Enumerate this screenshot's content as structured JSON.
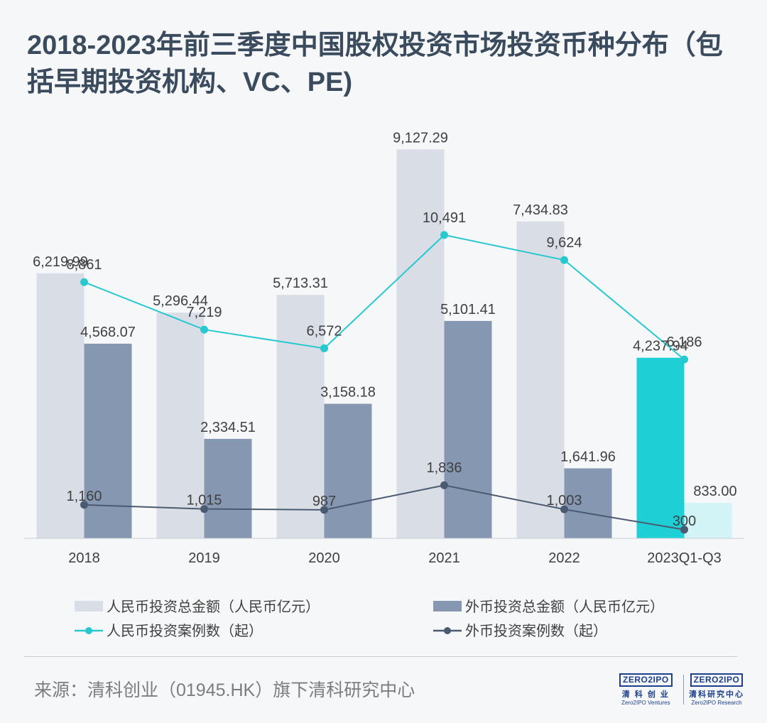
{
  "title": "2018-2023年前三季度中国股权投资市场投资币种分布（包括早期投资机构、VC、PE)",
  "source": "来源：清科创业（01945.HK）旗下清科研究中心",
  "logos": [
    {
      "mark": "ZERO2IPO",
      "cn": "清 科 创 业",
      "en": "Zero2IPO Ventures"
    },
    {
      "mark": "ZERO2IPO",
      "cn": "清科研究中心",
      "en": "Zero2IPO Research"
    }
  ],
  "colors": {
    "rmb_bar": "#d9dde5",
    "fx_bar": "#8597b1",
    "rmb_bar_highlight": "#1fcfd6",
    "fx_bar_highlight": "#d2f4f6",
    "rmb_line": "#27c8d0",
    "fx_line": "#4a5a70"
  },
  "chart_data": {
    "type": "bar",
    "title": "2018-2023年前三季度中国股权投资市场投资币种分布（包括早期投资机构、VC、PE)",
    "categories": [
      "2018",
      "2019",
      "2020",
      "2021",
      "2022",
      "2023Q1-Q3"
    ],
    "series": [
      {
        "name": "人民币投资总金额（人民币亿元）",
        "type": "bar",
        "values": [
          6219.99,
          5296.44,
          5713.31,
          9127.29,
          7434.83,
          4237.94
        ],
        "labels": [
          "6,219.99",
          "5,296.44",
          "5,713.31",
          "9,127.29",
          "7,434.83",
          "4,237.94"
        ]
      },
      {
        "name": "外币投资总金额（人民币亿元）",
        "type": "bar",
        "values": [
          4568.07,
          2334.51,
          3158.18,
          5101.41,
          1641.96,
          833.0
        ],
        "labels": [
          "4,568.07",
          "2,334.51",
          "3,158.18",
          "5,101.41",
          "1,641.96",
          "833.00"
        ]
      },
      {
        "name": "人民币投资案例数（起）",
        "type": "line",
        "values": [
          8861,
          7219,
          6572,
          10491,
          9624,
          6186
        ],
        "labels": [
          "8,861",
          "7,219",
          "6,572",
          "10,491",
          "9,624",
          "6,186"
        ]
      },
      {
        "name": "外币投资案例数（起）",
        "type": "line",
        "values": [
          1160,
          1015,
          987,
          1836,
          1003,
          300
        ],
        "labels": [
          "1,160",
          "1,015",
          "987",
          "1,836",
          "1,003",
          "300"
        ]
      }
    ],
    "xlabel": "",
    "ylabel": "",
    "ylim": [
      0,
      9500
    ],
    "y2lim": [
      0,
      14000
    ],
    "grid": false,
    "legend": "bottom"
  }
}
